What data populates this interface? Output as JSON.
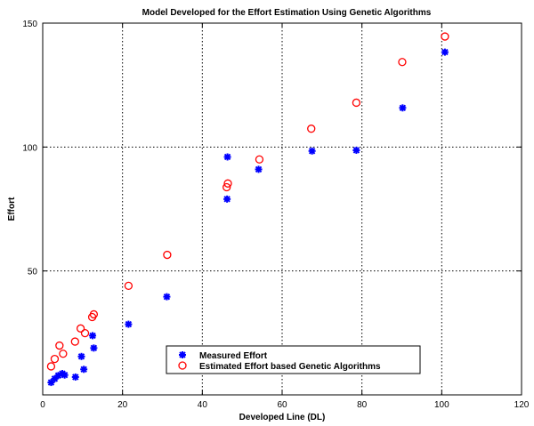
{
  "chart_data": {
    "type": "scatter",
    "title": "Model Developed for the Effort Estimation Using Genetic Algorithms",
    "xlabel": "Developed Line (DL)",
    "ylabel": "Effort",
    "xlim": [
      0,
      120
    ],
    "ylim": [
      0,
      150
    ],
    "xticks": [
      0,
      20,
      40,
      60,
      80,
      100,
      120
    ],
    "yticks": [
      50,
      100,
      150
    ],
    "grid": true,
    "legend_position": "bottom-center",
    "series": [
      {
        "name": "Measured Effort",
        "marker": "asterisk",
        "color": "#0000ff",
        "points": [
          [
            2.1,
            5.0
          ],
          [
            3.0,
            6.5
          ],
          [
            3.9,
            7.8
          ],
          [
            4.9,
            8.6
          ],
          [
            5.5,
            8.0
          ],
          [
            8.2,
            7.2
          ],
          [
            9.7,
            15.5
          ],
          [
            10.3,
            10.3
          ],
          [
            12.5,
            23.9
          ],
          [
            12.8,
            18.9
          ],
          [
            21.5,
            28.5
          ],
          [
            31.1,
            39.6
          ],
          [
            46.2,
            79.0
          ],
          [
            46.3,
            96.0
          ],
          [
            54.1,
            91.0
          ],
          [
            67.5,
            98.4
          ],
          [
            78.6,
            98.7
          ],
          [
            90.2,
            115.8
          ],
          [
            100.8,
            138.3
          ]
        ]
      },
      {
        "name": "Estimated Effort based Genetic Algorithms",
        "marker": "circle",
        "color": "#ff0000",
        "points": [
          [
            2.1,
            11.5
          ],
          [
            3.0,
            14.5
          ],
          [
            4.2,
            19.9
          ],
          [
            5.1,
            16.6
          ],
          [
            8.1,
            21.5
          ],
          [
            9.5,
            26.8
          ],
          [
            10.6,
            24.9
          ],
          [
            12.4,
            31.4
          ],
          [
            12.8,
            32.5
          ],
          [
            21.5,
            44.0
          ],
          [
            31.2,
            56.5
          ],
          [
            46.1,
            83.8
          ],
          [
            46.4,
            85.3
          ],
          [
            54.3,
            95.0
          ],
          [
            67.3,
            107.4
          ],
          [
            78.6,
            117.9
          ],
          [
            90.1,
            134.3
          ],
          [
            100.8,
            144.6
          ]
        ]
      }
    ]
  }
}
